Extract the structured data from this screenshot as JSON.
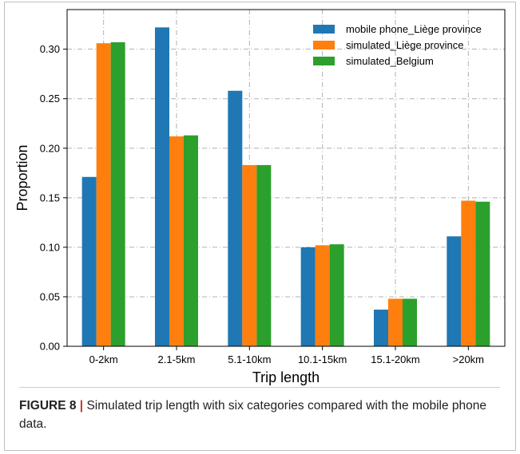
{
  "chart_data": {
    "type": "bar",
    "categories": [
      "0-2km",
      "2.1-5km",
      "5.1-10km",
      "10.1-15km",
      "15.1-20km",
      ">20km"
    ],
    "series": [
      {
        "name": "mobile phone_Liège province",
        "color": "#1f77b4",
        "values": [
          0.171,
          0.322,
          0.258,
          0.1,
          0.037,
          0.111
        ]
      },
      {
        "name": "simulated_Liège province",
        "color": "#ff7f0e",
        "values": [
          0.306,
          0.212,
          0.183,
          0.102,
          0.048,
          0.147
        ]
      },
      {
        "name": "simulated_Belgium",
        "color": "#2ca02c",
        "values": [
          0.307,
          0.213,
          0.183,
          0.103,
          0.048,
          0.146
        ]
      }
    ],
    "xlabel": "Trip length",
    "ylabel": "Proportion",
    "ylim": [
      0,
      0.34
    ],
    "yticks": [
      0.0,
      0.05,
      0.1,
      0.15,
      0.2,
      0.25,
      0.3
    ],
    "ytick_labels": [
      "0.00",
      "0.05",
      "0.10",
      "0.15",
      "0.20",
      "0.25",
      "0.30"
    ],
    "grid": true,
    "legend_position": "top-right"
  },
  "caption": {
    "label": "FIGURE 8",
    "separator": " | ",
    "text": "Simulated trip length with six categories compared with the mobile phone data."
  }
}
